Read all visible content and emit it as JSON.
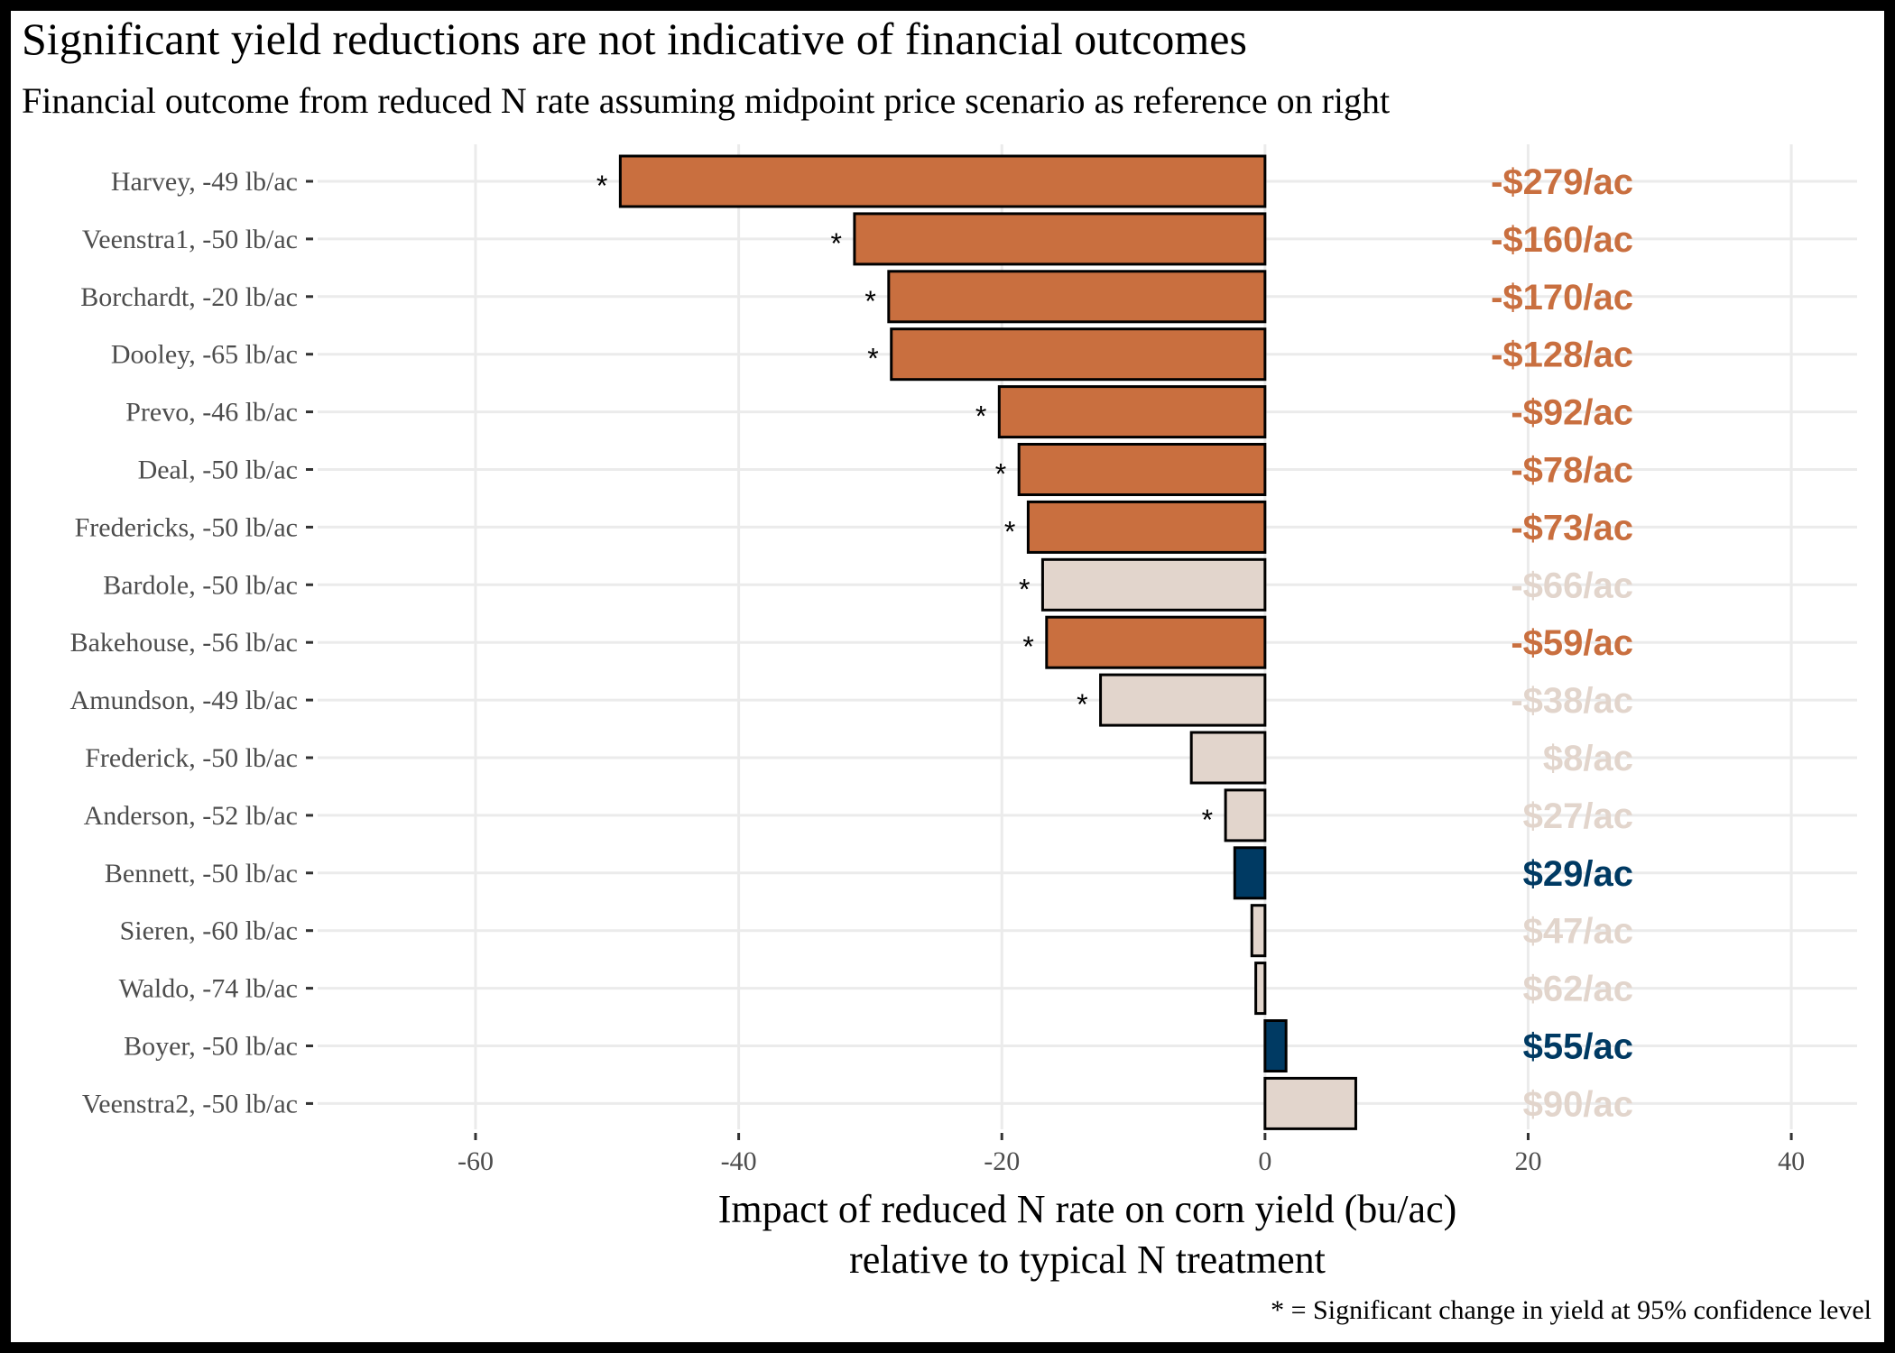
{
  "title": "Significant yield reductions are not indicative of financial outcomes",
  "subtitle": "Financial outcome from reduced N rate assuming midpoint price scenario as reference on right",
  "footnote": "* = Significant change in yield at 95% confidence level",
  "colors": {
    "loss": "#c96f3f",
    "neutral": "#e2d5cc",
    "gain": "#003a63",
    "bar_outline": "#000000",
    "grid": "#ebebeb"
  },
  "chart_data": {
    "type": "bar",
    "orientation": "horizontal",
    "xlabel_lines": [
      "Impact of reduced N rate on corn yield (bu/ac)",
      "relative to typical N treatment"
    ],
    "xlim": [
      -72,
      45
    ],
    "xticks": [
      -60,
      -40,
      -20,
      0,
      20,
      40
    ],
    "xtick_labels": [
      "-60",
      "-40",
      "-20",
      "0",
      "20",
      "40"
    ],
    "grid": true,
    "series": [
      {
        "category": "Harvey, -49 lb/ac",
        "value": -49.0,
        "significant": true,
        "financial": "-$279/ac",
        "color_class": "loss"
      },
      {
        "category": "Veenstra1, -50 lb/ac",
        "value": -31.2,
        "significant": true,
        "financial": "-$160/ac",
        "color_class": "loss"
      },
      {
        "category": "Borchardt, -20 lb/ac",
        "value": -28.6,
        "significant": true,
        "financial": "-$170/ac",
        "color_class": "loss"
      },
      {
        "category": "Dooley, -65 lb/ac",
        "value": -28.4,
        "significant": true,
        "financial": "-$128/ac",
        "color_class": "loss"
      },
      {
        "category": "Prevo, -46 lb/ac",
        "value": -20.2,
        "significant": true,
        "financial": "-$92/ac",
        "color_class": "loss"
      },
      {
        "category": "Deal, -50 lb/ac",
        "value": -18.7,
        "significant": true,
        "financial": "-$78/ac",
        "color_class": "loss"
      },
      {
        "category": "Fredericks, -50 lb/ac",
        "value": -18.0,
        "significant": true,
        "financial": "-$73/ac",
        "color_class": "loss"
      },
      {
        "category": "Bardole, -50 lb/ac",
        "value": -16.9,
        "significant": true,
        "financial": "-$66/ac",
        "color_class": "neutral"
      },
      {
        "category": "Bakehouse, -56 lb/ac",
        "value": -16.6,
        "significant": true,
        "financial": "-$59/ac",
        "color_class": "loss"
      },
      {
        "category": "Amundson, -49 lb/ac",
        "value": -12.5,
        "significant": true,
        "financial": "-$38/ac",
        "color_class": "neutral"
      },
      {
        "category": "Frederick, -50 lb/ac",
        "value": -5.6,
        "significant": false,
        "financial": "$8/ac",
        "color_class": "neutral"
      },
      {
        "category": "Anderson, -52 lb/ac",
        "value": -3.0,
        "significant": true,
        "financial": "$27/ac",
        "color_class": "neutral"
      },
      {
        "category": "Bennett, -50 lb/ac",
        "value": -2.3,
        "significant": false,
        "financial": "$29/ac",
        "color_class": "gain"
      },
      {
        "category": "Sieren, -60 lb/ac",
        "value": -1.0,
        "significant": false,
        "financial": "$47/ac",
        "color_class": "neutral"
      },
      {
        "category": "Waldo, -74 lb/ac",
        "value": -0.7,
        "significant": false,
        "financial": "$62/ac",
        "color_class": "neutral"
      },
      {
        "category": "Boyer, -50 lb/ac",
        "value": 1.6,
        "significant": false,
        "financial": "$55/ac",
        "color_class": "gain"
      },
      {
        "category": "Veenstra2, -50 lb/ac",
        "value": 6.9,
        "significant": false,
        "financial": "$90/ac",
        "color_class": "neutral"
      }
    ]
  }
}
